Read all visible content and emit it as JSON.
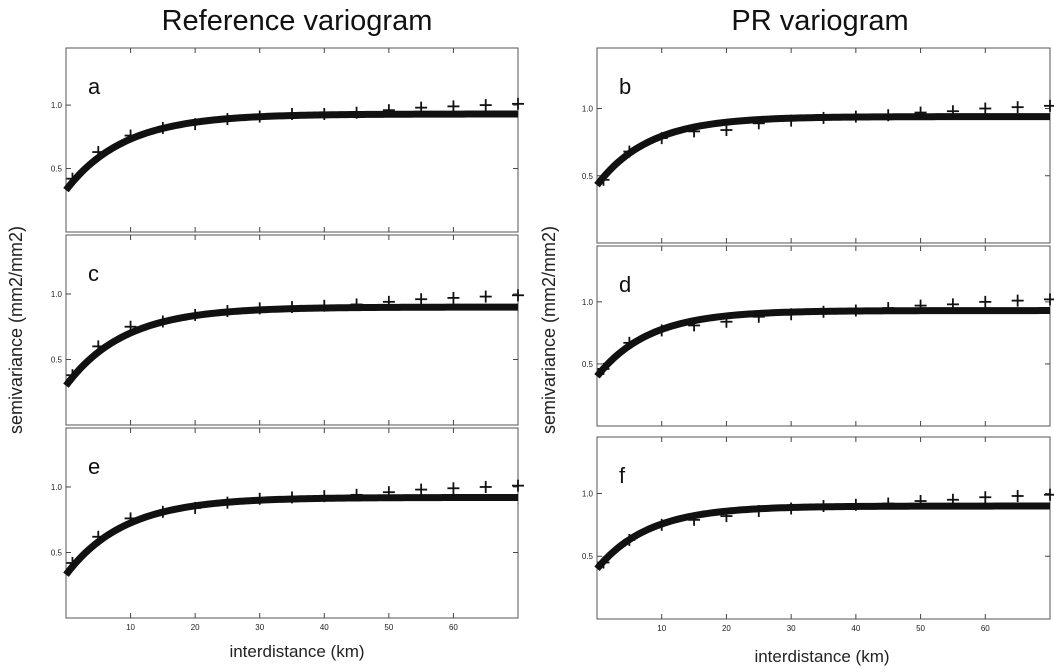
{
  "figure": {
    "left_title": "Reference variogram",
    "right_title": "PR variogram",
    "left_ylabel": "semivariance (mm2/mm2)",
    "right_ylabel": "semivariance (mm2/mm2)",
    "left_xlabel": "interdistance (km)",
    "right_xlabel": "interdistance (km)"
  },
  "colors": {
    "model": "#111111",
    "points": "#111111",
    "frame": "#555555"
  },
  "chart_data": [
    {
      "type": "line",
      "panel": "a",
      "group": "Reference variogram",
      "xlim": [
        0,
        70
      ],
      "ylim": [
        0,
        1.45
      ],
      "x_ticks": [
        10,
        20,
        30,
        40,
        50,
        60
      ],
      "y_ticks": [
        0.5,
        1.0
      ],
      "series": [
        {
          "kind": "model",
          "nugget": 0.33,
          "sill": 0.93,
          "range": 9,
          "x": [
            0,
            5,
            10,
            15,
            20,
            25,
            30,
            35,
            40,
            45,
            50,
            55,
            60,
            65,
            70
          ],
          "y": [
            0.33,
            0.62,
            0.77,
            0.85,
            0.89,
            0.91,
            0.92,
            0.925,
            0.93,
            0.93,
            0.93,
            0.93,
            0.93,
            0.93,
            0.93
          ]
        },
        {
          "kind": "points",
          "x": [
            1,
            5,
            10,
            15,
            20,
            25,
            30,
            35,
            40,
            45,
            50,
            55,
            60,
            65,
            70
          ],
          "y": [
            0.42,
            0.63,
            0.76,
            0.82,
            0.85,
            0.89,
            0.91,
            0.93,
            0.93,
            0.94,
            0.96,
            0.98,
            0.99,
            1.0,
            1.01
          ]
        }
      ]
    },
    {
      "type": "line",
      "panel": "b",
      "group": "PR variogram",
      "xlim": [
        0,
        70
      ],
      "ylim": [
        0,
        1.45
      ],
      "x_ticks": [
        10,
        20,
        30,
        40,
        50,
        60
      ],
      "y_ticks": [
        0.5,
        1.0
      ],
      "series": [
        {
          "kind": "model",
          "nugget": 0.43,
          "sill": 0.94,
          "range": 8,
          "x": [
            0,
            5,
            10,
            15,
            20,
            25,
            30,
            35,
            40,
            45,
            50,
            55,
            60,
            65,
            70
          ],
          "y": [
            0.43,
            0.67,
            0.8,
            0.87,
            0.9,
            0.92,
            0.93,
            0.935,
            0.94,
            0.94,
            0.94,
            0.94,
            0.94,
            0.94,
            0.94
          ]
        },
        {
          "kind": "points",
          "x": [
            1,
            5,
            10,
            15,
            20,
            25,
            30,
            35,
            40,
            45,
            50,
            55,
            60,
            65,
            70
          ],
          "y": [
            0.47,
            0.68,
            0.78,
            0.83,
            0.84,
            0.89,
            0.91,
            0.93,
            0.94,
            0.95,
            0.97,
            0.98,
            1.0,
            1.01,
            1.02
          ]
        }
      ]
    },
    {
      "type": "line",
      "panel": "c",
      "group": "Reference variogram",
      "xlim": [
        0,
        70
      ],
      "ylim": [
        0,
        1.45
      ],
      "x_ticks": [
        10,
        20,
        30,
        40,
        50,
        60
      ],
      "y_ticks": [
        0.5,
        1.0
      ],
      "series": [
        {
          "kind": "model",
          "nugget": 0.3,
          "sill": 0.9,
          "range": 9,
          "x": [
            0,
            5,
            10,
            15,
            20,
            25,
            30,
            35,
            40,
            45,
            50,
            55,
            60,
            65,
            70
          ],
          "y": [
            0.3,
            0.6,
            0.75,
            0.82,
            0.86,
            0.88,
            0.89,
            0.895,
            0.9,
            0.9,
            0.9,
            0.9,
            0.9,
            0.9,
            0.9
          ]
        },
        {
          "kind": "points",
          "x": [
            1,
            5,
            10,
            15,
            20,
            25,
            30,
            35,
            40,
            45,
            50,
            55,
            60,
            65,
            70
          ],
          "y": [
            0.38,
            0.6,
            0.75,
            0.79,
            0.84,
            0.87,
            0.89,
            0.9,
            0.91,
            0.92,
            0.94,
            0.96,
            0.97,
            0.98,
            0.99
          ]
        }
      ]
    },
    {
      "type": "line",
      "panel": "d",
      "group": "PR variogram",
      "xlim": [
        0,
        70
      ],
      "ylim": [
        0,
        1.45
      ],
      "x_ticks": [
        10,
        20,
        30,
        40,
        50,
        60
      ],
      "y_ticks": [
        0.5,
        1.0
      ],
      "series": [
        {
          "kind": "model",
          "nugget": 0.4,
          "sill": 0.93,
          "range": 8,
          "x": [
            0,
            5,
            10,
            15,
            20,
            25,
            30,
            35,
            40,
            45,
            50,
            55,
            60,
            65,
            70
          ],
          "y": [
            0.4,
            0.66,
            0.79,
            0.86,
            0.89,
            0.91,
            0.92,
            0.925,
            0.93,
            0.93,
            0.93,
            0.93,
            0.93,
            0.93,
            0.93
          ]
        },
        {
          "kind": "points",
          "x": [
            1,
            5,
            10,
            15,
            20,
            25,
            30,
            35,
            40,
            45,
            50,
            55,
            60,
            65,
            70
          ],
          "y": [
            0.46,
            0.67,
            0.77,
            0.81,
            0.84,
            0.88,
            0.9,
            0.92,
            0.93,
            0.95,
            0.97,
            0.98,
            1.0,
            1.01,
            1.02
          ]
        }
      ]
    },
    {
      "type": "line",
      "panel": "e",
      "group": "Reference variogram",
      "xlim": [
        0,
        70
      ],
      "ylim": [
        0,
        1.45
      ],
      "x_ticks": [
        10,
        20,
        30,
        40,
        50,
        60
      ],
      "y_ticks": [
        0.5,
        1.0
      ],
      "series": [
        {
          "kind": "model",
          "nugget": 0.33,
          "sill": 0.92,
          "range": 9,
          "x": [
            0,
            5,
            10,
            15,
            20,
            25,
            30,
            35,
            40,
            45,
            50,
            55,
            60,
            65,
            70
          ],
          "y": [
            0.33,
            0.61,
            0.76,
            0.84,
            0.88,
            0.9,
            0.91,
            0.915,
            0.92,
            0.92,
            0.92,
            0.92,
            0.92,
            0.92,
            0.92
          ]
        },
        {
          "kind": "points",
          "x": [
            1,
            5,
            10,
            15,
            20,
            25,
            30,
            35,
            40,
            45,
            50,
            55,
            60,
            65,
            70
          ],
          "y": [
            0.42,
            0.62,
            0.76,
            0.81,
            0.84,
            0.88,
            0.91,
            0.92,
            0.93,
            0.94,
            0.96,
            0.98,
            0.99,
            1.0,
            1.01
          ]
        }
      ]
    },
    {
      "type": "line",
      "panel": "f",
      "group": "PR variogram",
      "xlim": [
        0,
        70
      ],
      "ylim": [
        0,
        1.45
      ],
      "x_ticks": [
        10,
        20,
        30,
        40,
        50,
        60
      ],
      "y_ticks": [
        0.5,
        1.0
      ],
      "series": [
        {
          "kind": "model",
          "nugget": 0.4,
          "sill": 0.9,
          "range": 8,
          "x": [
            0,
            5,
            10,
            15,
            20,
            25,
            30,
            35,
            40,
            45,
            50,
            55,
            60,
            65,
            70
          ],
          "y": [
            0.4,
            0.64,
            0.77,
            0.83,
            0.86,
            0.88,
            0.89,
            0.895,
            0.9,
            0.9,
            0.9,
            0.9,
            0.9,
            0.9,
            0.9
          ]
        },
        {
          "kind": "points",
          "x": [
            1,
            5,
            10,
            15,
            20,
            25,
            30,
            35,
            40,
            45,
            50,
            55,
            60,
            65,
            70
          ],
          "y": [
            0.45,
            0.63,
            0.75,
            0.79,
            0.82,
            0.86,
            0.88,
            0.9,
            0.91,
            0.92,
            0.94,
            0.95,
            0.97,
            0.98,
            0.99
          ]
        }
      ]
    }
  ]
}
